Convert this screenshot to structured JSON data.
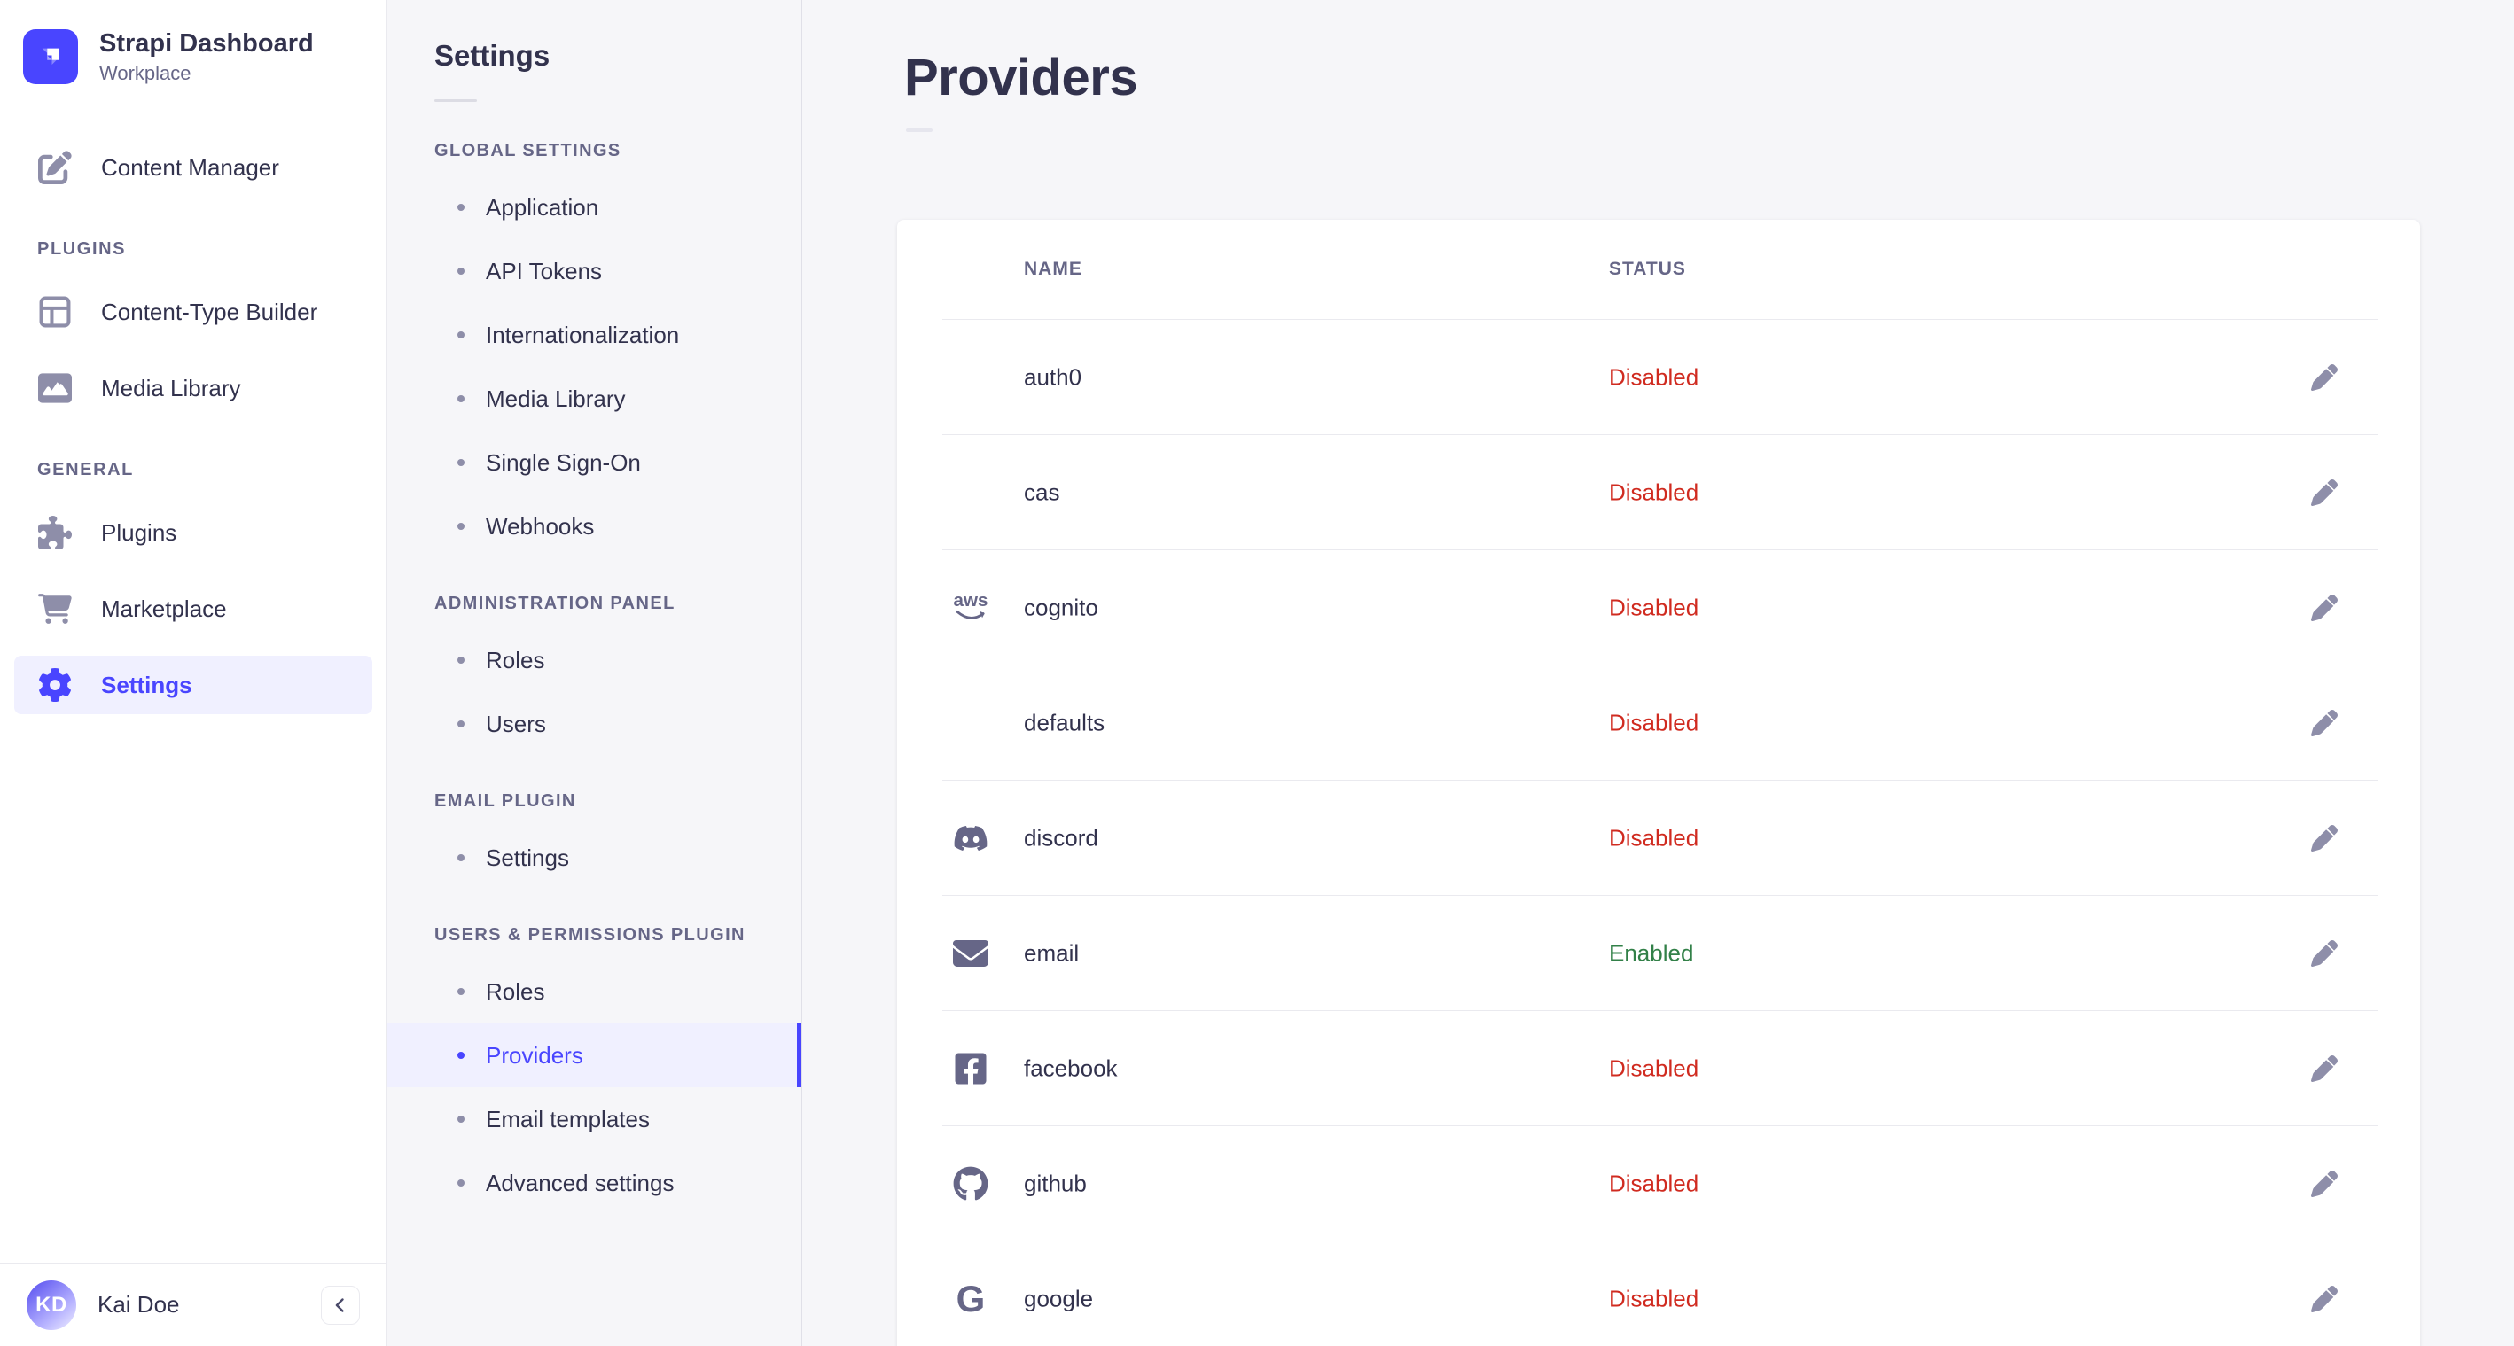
{
  "brand": {
    "name": "Strapi Dashboard",
    "workplace": "Workplace"
  },
  "sidebar": {
    "primary": [
      {
        "label": "Content Manager",
        "icon": "pen-square-icon"
      }
    ],
    "sections": [
      {
        "label": "PLUGINS",
        "items": [
          {
            "label": "Content-Type Builder",
            "icon": "layout-icon",
            "active": false
          },
          {
            "label": "Media Library",
            "icon": "image-icon",
            "active": false
          }
        ]
      },
      {
        "label": "GENERAL",
        "items": [
          {
            "label": "Plugins",
            "icon": "puzzle-icon",
            "active": false
          },
          {
            "label": "Marketplace",
            "icon": "cart-icon",
            "active": false
          },
          {
            "label": "Settings",
            "icon": "gear-icon",
            "active": true
          }
        ]
      }
    ],
    "user": {
      "initials": "KD",
      "name": "Kai Doe"
    }
  },
  "subnav": {
    "title": "Settings",
    "sections": [
      {
        "label": "GLOBAL SETTINGS",
        "items": [
          {
            "label": "Application",
            "active": false
          },
          {
            "label": "API Tokens",
            "active": false
          },
          {
            "label": "Internationalization",
            "active": false
          },
          {
            "label": "Media Library",
            "active": false
          },
          {
            "label": "Single Sign-On",
            "active": false
          },
          {
            "label": "Webhooks",
            "active": false
          }
        ]
      },
      {
        "label": "ADMINISTRATION PANEL",
        "items": [
          {
            "label": "Roles",
            "active": false
          },
          {
            "label": "Users",
            "active": false
          }
        ]
      },
      {
        "label": "EMAIL PLUGIN",
        "items": [
          {
            "label": "Settings",
            "active": false
          }
        ]
      },
      {
        "label": "USERS & PERMISSIONS PLUGIN",
        "items": [
          {
            "label": "Roles",
            "active": false
          },
          {
            "label": "Providers",
            "active": true
          },
          {
            "label": "Email templates",
            "active": false
          },
          {
            "label": "Advanced settings",
            "active": false
          }
        ]
      }
    ]
  },
  "main": {
    "title": "Providers",
    "table": {
      "columns": [
        "NAME",
        "STATUS"
      ],
      "rows": [
        {
          "name": "auth0",
          "status": "Disabled",
          "icon": "none"
        },
        {
          "name": "cas",
          "status": "Disabled",
          "icon": "none"
        },
        {
          "name": "cognito",
          "status": "Disabled",
          "icon": "aws-icon"
        },
        {
          "name": "defaults",
          "status": "Disabled",
          "icon": "none"
        },
        {
          "name": "discord",
          "status": "Disabled",
          "icon": "discord-icon"
        },
        {
          "name": "email",
          "status": "Enabled",
          "icon": "email-icon"
        },
        {
          "name": "facebook",
          "status": "Disabled",
          "icon": "facebook-icon"
        },
        {
          "name": "github",
          "status": "Disabled",
          "icon": "github-icon"
        },
        {
          "name": "google",
          "status": "Disabled",
          "icon": "google-icon"
        }
      ]
    }
  },
  "help": {
    "label": "?"
  },
  "colors": {
    "primary": "#4945ff",
    "primary_bg": "#f0f0ff",
    "danger": "#d02b20",
    "success": "#328048",
    "text": "#32324d",
    "muted": "#666687",
    "subtle": "#8e8ea9",
    "border": "#eaeaef",
    "background": "#f6f6f9"
  }
}
